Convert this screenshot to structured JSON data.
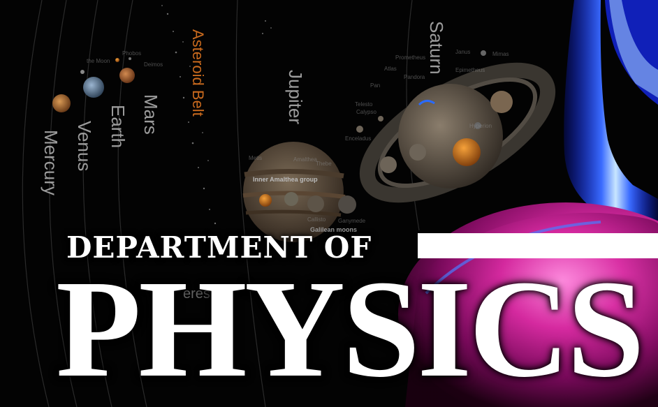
{
  "banner": {
    "line1": "DEPARTMENT OF",
    "line2": "PHYSICS"
  },
  "solar_system": {
    "planets": {
      "mercury": "Mercury",
      "venus": "Venus",
      "earth": "Earth",
      "mars": "Mars",
      "jupiter": "Jupiter",
      "saturn": "Saturn"
    },
    "asteroid_belt": "Asteroid Belt",
    "moons": {
      "the_moon": "the Moon",
      "phobos": "Phobos",
      "deimos": "Deimos",
      "prometheus": "Prometheus",
      "janus": "Janus",
      "mimas": "Mimas",
      "atlas": "Atlas",
      "pandora": "Pandora",
      "epimetheus": "Epimetheus",
      "pan": "Pan",
      "telesto": "Telesto",
      "calypso": "Calypso",
      "enceladus": "Enceladus",
      "hyperion": "Hyperion",
      "metis": "Metis",
      "thebe": "Thebe",
      "amalthea": "Amalthea",
      "callisto": "Callisto",
      "ganymede": "Ganymede"
    },
    "groups": {
      "inner_amalthea": "Inner Amalthea group",
      "galilean": "Galilean moons"
    },
    "ceres_fragment": "eres"
  },
  "colors": {
    "background": "#030303",
    "headline": "#ffffff",
    "asteroid_label": "#c96a1e",
    "plasma_blue": "#2a3cff",
    "plasma_pink": "#c21a8c"
  }
}
